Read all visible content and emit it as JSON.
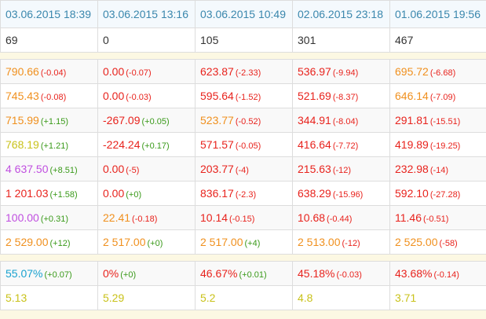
{
  "header": {
    "dates": [
      "03.06.2015 18:39",
      "03.06.2015 13:16",
      "03.06.2015 10:49",
      "02.06.2015 23:18",
      "01.06.2015 19:56"
    ],
    "counts": [
      "69",
      "0",
      "105",
      "301",
      "467"
    ]
  },
  "rows": [
    [
      {
        "value": "790.66",
        "value_color": "orange",
        "delta": "(-0.04)",
        "delta_color": "red"
      },
      {
        "value": "0.00",
        "value_color": "red",
        "delta": "(-0.07)",
        "delta_color": "red"
      },
      {
        "value": "623.87",
        "value_color": "red",
        "delta": "(-2.33)",
        "delta_color": "red"
      },
      {
        "value": "536.97",
        "value_color": "red",
        "delta": "(-9.94)",
        "delta_color": "red"
      },
      {
        "value": "695.72",
        "value_color": "orange",
        "delta": "(-6.68)",
        "delta_color": "red"
      }
    ],
    [
      {
        "value": "745.43",
        "value_color": "orange",
        "delta": "(-0.08)",
        "delta_color": "red"
      },
      {
        "value": "0.00",
        "value_color": "red",
        "delta": "(-0.03)",
        "delta_color": "red"
      },
      {
        "value": "595.64",
        "value_color": "red",
        "delta": "(-1.52)",
        "delta_color": "red"
      },
      {
        "value": "521.69",
        "value_color": "red",
        "delta": "(-8.37)",
        "delta_color": "red"
      },
      {
        "value": "646.14",
        "value_color": "orange",
        "delta": "(-7.09)",
        "delta_color": "red"
      }
    ],
    [
      {
        "value": "715.99",
        "value_color": "orange",
        "delta": "(+1.15)",
        "delta_color": "green"
      },
      {
        "value": "-267.09",
        "value_color": "red",
        "delta": "(+0.05)",
        "delta_color": "green"
      },
      {
        "value": "523.77",
        "value_color": "orange",
        "delta": "(-0.52)",
        "delta_color": "red"
      },
      {
        "value": "344.91",
        "value_color": "red",
        "delta": "(-8.04)",
        "delta_color": "red"
      },
      {
        "value": "291.81",
        "value_color": "red",
        "delta": "(-15.51)",
        "delta_color": "red"
      }
    ],
    [
      {
        "value": "768.19",
        "value_color": "yellow",
        "delta": "(+1.21)",
        "delta_color": "green"
      },
      {
        "value": "-224.24",
        "value_color": "red",
        "delta": "(+0.17)",
        "delta_color": "green"
      },
      {
        "value": "571.57",
        "value_color": "red",
        "delta": "(-0.05)",
        "delta_color": "red"
      },
      {
        "value": "416.64",
        "value_color": "red",
        "delta": "(-7.72)",
        "delta_color": "red"
      },
      {
        "value": "419.89",
        "value_color": "red",
        "delta": "(-19.25)",
        "delta_color": "red"
      }
    ],
    [
      {
        "value": "4 637.50",
        "value_color": "purple",
        "delta": "(+8.51)",
        "delta_color": "green"
      },
      {
        "value": "0.00",
        "value_color": "red",
        "delta": "(-5)",
        "delta_color": "red"
      },
      {
        "value": "203.77",
        "value_color": "red",
        "delta": "(-4)",
        "delta_color": "red"
      },
      {
        "value": "215.63",
        "value_color": "red",
        "delta": "(-12)",
        "delta_color": "red"
      },
      {
        "value": "232.98",
        "value_color": "red",
        "delta": "(-14)",
        "delta_color": "red"
      }
    ],
    [
      {
        "value": "1 201.03",
        "value_color": "red",
        "delta": "(+1.58)",
        "delta_color": "green"
      },
      {
        "value": "0.00",
        "value_color": "red",
        "delta": "(+0)",
        "delta_color": "green"
      },
      {
        "value": "836.17",
        "value_color": "red",
        "delta": "(-2.3)",
        "delta_color": "red"
      },
      {
        "value": "638.29",
        "value_color": "red",
        "delta": "(-15.96)",
        "delta_color": "red"
      },
      {
        "value": "592.10",
        "value_color": "red",
        "delta": "(-27.28)",
        "delta_color": "red"
      }
    ],
    [
      {
        "value": "100.00",
        "value_color": "purple",
        "delta": "(+0.31)",
        "delta_color": "green"
      },
      {
        "value": "22.41",
        "value_color": "orange",
        "delta": "(-0.18)",
        "delta_color": "red"
      },
      {
        "value": "10.14",
        "value_color": "red",
        "delta": "(-0.15)",
        "delta_color": "red"
      },
      {
        "value": "10.68",
        "value_color": "red",
        "delta": "(-0.44)",
        "delta_color": "red"
      },
      {
        "value": "11.46",
        "value_color": "red",
        "delta": "(-0.51)",
        "delta_color": "red"
      }
    ],
    [
      {
        "value": "2 529.00",
        "value_color": "orange",
        "delta": "(+12)",
        "delta_color": "green"
      },
      {
        "value": "2 517.00",
        "value_color": "orange",
        "delta": "(+0)",
        "delta_color": "green"
      },
      {
        "value": "2 517.00",
        "value_color": "orange",
        "delta": "(+4)",
        "delta_color": "green"
      },
      {
        "value": "2 513.00",
        "value_color": "orange",
        "delta": "(-12)",
        "delta_color": "red"
      },
      {
        "value": "2 525.00",
        "value_color": "orange",
        "delta": "(-58)",
        "delta_color": "red"
      }
    ]
  ],
  "summary": [
    [
      {
        "value": "55.07%",
        "value_color": "teal",
        "delta": "(+0.07)",
        "delta_color": "green"
      },
      {
        "value": "0%",
        "value_color": "red",
        "delta": "(+0)",
        "delta_color": "green"
      },
      {
        "value": "46.67%",
        "value_color": "red",
        "delta": "(+0.01)",
        "delta_color": "green"
      },
      {
        "value": "45.18%",
        "value_color": "red",
        "delta": "(-0.03)",
        "delta_color": "red"
      },
      {
        "value": "43.68%",
        "value_color": "red",
        "delta": "(-0.14)",
        "delta_color": "red"
      }
    ],
    [
      {
        "value": "5.13",
        "value_color": "yellow",
        "delta": "",
        "delta_color": ""
      },
      {
        "value": "5.29",
        "value_color": "yellow",
        "delta": "",
        "delta_color": ""
      },
      {
        "value": "5.2",
        "value_color": "yellow",
        "delta": "",
        "delta_color": ""
      },
      {
        "value": "4.8",
        "value_color": "yellow",
        "delta": "",
        "delta_color": ""
      },
      {
        "value": "3.71",
        "value_color": "yellow",
        "delta": "",
        "delta_color": ""
      }
    ]
  ]
}
